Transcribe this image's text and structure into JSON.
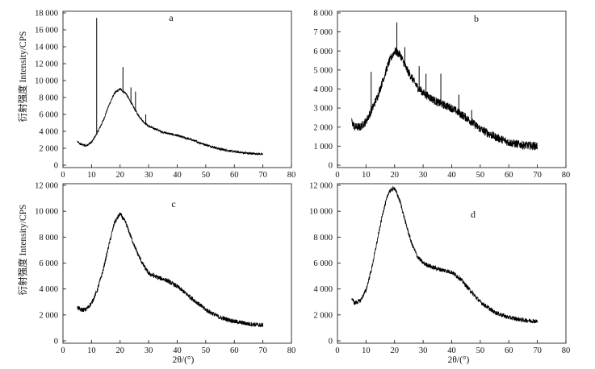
{
  "figure": {
    "y_axis_title": "衍射强度 Intensity/CPS",
    "x_axis_title": "2θ/(°)"
  },
  "chart_data": [
    {
      "type": "line",
      "panel": "a",
      "label": "a",
      "xlim": [
        0,
        80
      ],
      "ylim": [
        0,
        18000
      ],
      "x_ticks": [
        0,
        10,
        20,
        30,
        40,
        50,
        60,
        70,
        80
      ],
      "y_ticks": [
        0,
        2000,
        4000,
        6000,
        8000,
        10000,
        12000,
        14000,
        16000,
        18000
      ],
      "x_tick_labels": [
        "0",
        "10",
        "20",
        "30",
        "40",
        "50",
        "60",
        "70",
        "80"
      ],
      "y_tick_labels": [
        "0",
        "2 000",
        "4 000",
        "6 000",
        "8 000",
        "10 000",
        "12 000",
        "14 000",
        "16 000",
        "18 000"
      ],
      "curve": {
        "x": [
          5,
          6,
          8,
          10,
          12,
          14,
          16,
          18,
          20,
          22,
          24,
          26,
          28,
          30,
          35,
          40,
          45,
          50,
          55,
          60,
          65,
          70
        ],
        "y": [
          2800,
          2500,
          2300,
          2700,
          3800,
          5200,
          7000,
          8500,
          9000,
          8500,
          7300,
          6100,
          5200,
          4600,
          3900,
          3500,
          3000,
          2400,
          1900,
          1600,
          1400,
          1300
        ]
      },
      "peaks": [
        {
          "x": 11.8,
          "y": 17400
        },
        {
          "x": 21.0,
          "y": 11600
        },
        {
          "x": 23.8,
          "y": 9200
        },
        {
          "x": 25.4,
          "y": 8700
        },
        {
          "x": 29.0,
          "y": 6000
        }
      ],
      "noise": 130
    },
    {
      "type": "line",
      "panel": "b",
      "label": "b",
      "xlim": [
        0,
        80
      ],
      "ylim": [
        0,
        8000
      ],
      "x_ticks": [
        0,
        10,
        20,
        30,
        40,
        50,
        60,
        70,
        80
      ],
      "y_ticks": [
        0,
        1000,
        2000,
        3000,
        4000,
        5000,
        6000,
        7000,
        8000
      ],
      "x_tick_labels": [
        "0",
        "10",
        "20",
        "30",
        "40",
        "50",
        "60",
        "70",
        "80"
      ],
      "y_tick_labels": [
        "0",
        "1 000",
        "2 000",
        "3 000",
        "4 000",
        "5 000",
        "6 000",
        "7 000",
        "8 000"
      ],
      "curve": {
        "x": [
          5,
          6,
          8,
          10,
          12,
          14,
          16,
          18,
          20,
          22,
          24,
          26,
          28,
          30,
          35,
          40,
          45,
          50,
          55,
          60,
          65,
          70
        ],
        "y": [
          2300,
          2000,
          2000,
          2300,
          2900,
          3600,
          4500,
          5400,
          6000,
          5800,
          5100,
          4600,
          4100,
          3800,
          3300,
          3000,
          2500,
          1900,
          1500,
          1200,
          1050,
          1000
        ]
      },
      "peaks": [
        {
          "x": 11.8,
          "y": 4900
        },
        {
          "x": 20.8,
          "y": 7500
        },
        {
          "x": 23.6,
          "y": 6200
        },
        {
          "x": 28.6,
          "y": 5200
        },
        {
          "x": 31.0,
          "y": 4800
        },
        {
          "x": 36.2,
          "y": 4800
        },
        {
          "x": 42.5,
          "y": 3700
        },
        {
          "x": 47.0,
          "y": 2900
        }
      ],
      "noise": 220
    },
    {
      "type": "line",
      "panel": "c",
      "label": "c",
      "xlim": [
        0,
        80
      ],
      "ylim": [
        0,
        12000
      ],
      "x_ticks": [
        0,
        10,
        20,
        30,
        40,
        50,
        60,
        70,
        80
      ],
      "y_ticks": [
        0,
        2000,
        4000,
        6000,
        8000,
        10000,
        12000
      ],
      "x_tick_labels": [
        "0",
        "10",
        "20",
        "30",
        "40",
        "50",
        "60",
        "70",
        "80"
      ],
      "y_tick_labels": [
        "0",
        "2 000",
        "4 000",
        "6 000",
        "8 000",
        "10 000",
        "12 000"
      ],
      "curve": {
        "x": [
          5,
          6,
          8,
          10,
          12,
          14,
          16,
          18,
          20,
          22,
          24,
          26,
          28,
          30,
          33,
          36,
          40,
          45,
          50,
          55,
          60,
          65,
          70
        ],
        "y": [
          2600,
          2400,
          2400,
          2900,
          3900,
          5400,
          7300,
          9100,
          9800,
          9100,
          7900,
          6800,
          5900,
          5200,
          4900,
          4700,
          4200,
          3300,
          2400,
          1800,
          1500,
          1300,
          1200
        ]
      },
      "peaks": [],
      "noise": 170
    },
    {
      "type": "line",
      "panel": "d",
      "label": "d",
      "xlim": [
        0,
        80
      ],
      "ylim": [
        0,
        12000
      ],
      "x_ticks": [
        0,
        10,
        20,
        30,
        40,
        50,
        60,
        70,
        80
      ],
      "y_ticks": [
        0,
        2000,
        4000,
        6000,
        8000,
        10000,
        12000
      ],
      "x_tick_labels": [
        "0",
        "10",
        "20",
        "30",
        "40",
        "50",
        "60",
        "70",
        "80"
      ],
      "y_tick_labels": [
        "0",
        "2 000",
        "4 000",
        "6 000",
        "8 000",
        "10 000",
        "12 000"
      ],
      "curve": {
        "x": [
          5,
          6,
          8,
          10,
          12,
          14,
          16,
          18,
          20,
          22,
          24,
          26,
          28,
          30,
          33,
          36,
          40,
          43,
          46,
          50,
          55,
          60,
          65,
          70
        ],
        "y": [
          3300,
          2900,
          3100,
          3900,
          5600,
          7800,
          10000,
          11500,
          11800,
          10700,
          9000,
          7500,
          6500,
          6000,
          5700,
          5500,
          5300,
          4800,
          4000,
          3000,
          2200,
          1800,
          1600,
          1500
        ]
      },
      "peaks": [],
      "noise": 170
    }
  ]
}
